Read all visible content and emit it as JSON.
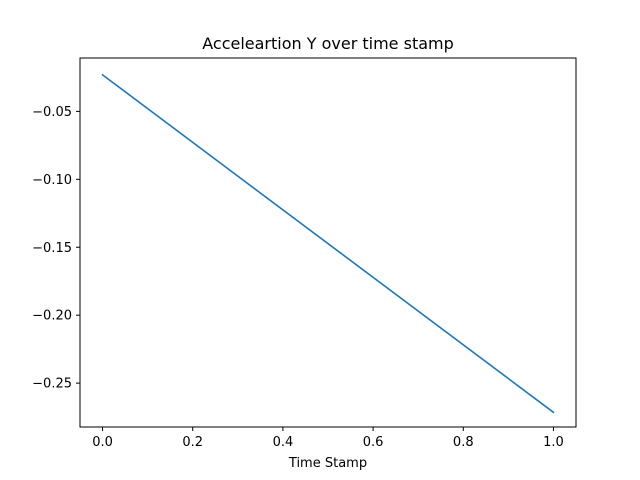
{
  "chart_data": {
    "type": "line",
    "title": "Acceleartion Y over time stamp",
    "xlabel": "Time Stamp",
    "ylabel": "",
    "xlim": [
      -0.05,
      1.05
    ],
    "ylim": [
      -0.2823,
      -0.0107
    ],
    "grid": false,
    "x_ticks": [
      0.0,
      0.2,
      0.4,
      0.6,
      0.8,
      1.0
    ],
    "x_tick_labels": [
      "0.0",
      "0.2",
      "0.4",
      "0.6",
      "0.8",
      "1.0"
    ],
    "y_ticks": [
      -0.05,
      -0.1,
      -0.15,
      -0.2,
      -0.25
    ],
    "y_tick_labels": [
      "−0.05",
      "−0.10",
      "−0.15",
      "−0.20",
      "−0.25"
    ],
    "series": [
      {
        "color": "#1f77b4",
        "x": [
          0.0,
          1.0
        ],
        "y": [
          -0.0231,
          -0.2715
        ]
      }
    ]
  }
}
